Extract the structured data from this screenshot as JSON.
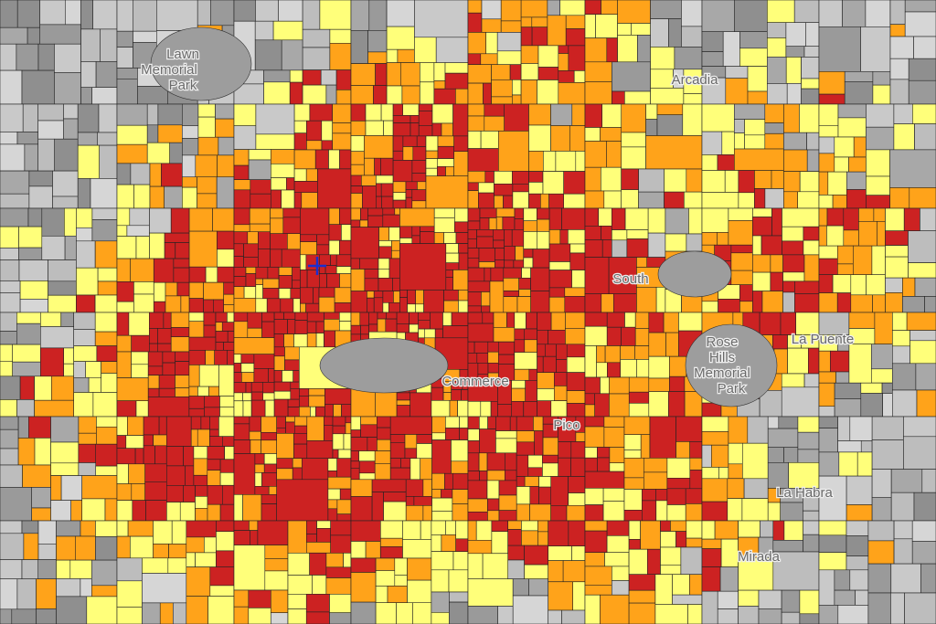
{
  "map": {
    "labels": [
      "Lawn",
      "Memorial",
      "Park",
      "Arcadia",
      "Commerce",
      "Pico",
      "South",
      "Rose",
      "Hills",
      "Memorial",
      "Park",
      "La Puente",
      "La Habra",
      "Mirada"
    ]
  }
}
